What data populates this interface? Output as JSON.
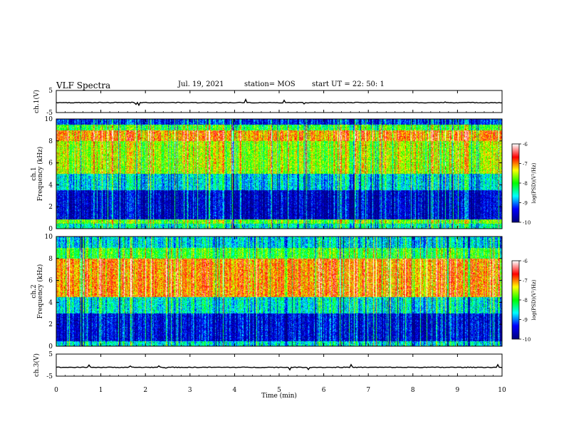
{
  "header": {
    "title": "VLF Spectra",
    "date": "Jul. 19, 2021",
    "station": "station= MOS",
    "start_ut": "start UT =  22: 50: 1"
  },
  "chart_data": [
    {
      "panel": "ch1-waveform",
      "type": "line",
      "ylabel": "ch.1(V)",
      "ylim": [
        -5,
        5
      ],
      "y_ticks": [
        "5",
        "-5"
      ],
      "xlim": [
        0,
        10
      ],
      "baseline": -0.5
    },
    {
      "panel": "ch1-spectrogram",
      "type": "heatmap",
      "ylabel": "ch.1\nFrequency (kHz)",
      "ylim": [
        0,
        10
      ],
      "y_ticks": [
        "0",
        "2",
        "4",
        "6",
        "8",
        "10"
      ],
      "xlim": [
        0,
        10
      ],
      "colorbar": {
        "label": "log(PSD)(V²/Hz)",
        "range": [
          -10,
          -6
        ],
        "ticks": [
          "-6",
          "-7",
          "-8",
          "-9",
          "-10"
        ]
      },
      "bands": [
        {
          "freq_khz": [
            0,
            0.4
          ],
          "level": -8.5
        },
        {
          "freq_khz": [
            0.4,
            0.8
          ],
          "level": -7.8
        },
        {
          "freq_khz": [
            0.8,
            3.5
          ],
          "level": -9.6
        },
        {
          "freq_khz": [
            3.5,
            5.0
          ],
          "level": -8.7
        },
        {
          "freq_khz": [
            5.0,
            8.0
          ],
          "level": -7.6
        },
        {
          "freq_khz": [
            8.0,
            9.0
          ],
          "level": -7.0
        },
        {
          "freq_khz": [
            9.0,
            9.5
          ],
          "level": -8.0
        },
        {
          "freq_khz": [
            9.5,
            10.0
          ],
          "level": -9.3
        }
      ]
    },
    {
      "panel": "ch2-spectrogram",
      "type": "heatmap",
      "ylabel": "ch.2\nFrequency (kHz)",
      "ylim": [
        0,
        10
      ],
      "y_ticks": [
        "0",
        "2",
        "4",
        "6",
        "8",
        "10"
      ],
      "xlim": [
        0,
        10
      ],
      "colorbar": {
        "label": "log(PSD)(V²/Hz)",
        "range": [
          -10,
          -6
        ],
        "ticks": [
          "-6",
          "-7",
          "-8",
          "-9",
          "-10"
        ]
      },
      "bands": [
        {
          "freq_khz": [
            0,
            0.4
          ],
          "level": -8.6
        },
        {
          "freq_khz": [
            0.4,
            3.0
          ],
          "level": -9.5
        },
        {
          "freq_khz": [
            3.0,
            4.5
          ],
          "level": -8.6
        },
        {
          "freq_khz": [
            4.5,
            8.0
          ],
          "level": -7.0
        },
        {
          "freq_khz": [
            8.0,
            9.0
          ],
          "level": -8.0
        },
        {
          "freq_khz": [
            9.0,
            10.0
          ],
          "level": -8.7
        }
      ]
    },
    {
      "panel": "ch3-waveform",
      "type": "line",
      "ylabel": "ch.3(V)",
      "ylim": [
        -5,
        5
      ],
      "y_ticks": [
        "5",
        "-5"
      ],
      "xlim": [
        0,
        10
      ],
      "baseline": -1.0
    }
  ],
  "x_axis": {
    "label": "Time (min)",
    "ticks": [
      "0",
      "1",
      "2",
      "3",
      "4",
      "5",
      "6",
      "7",
      "8",
      "9",
      "10"
    ],
    "range": [
      0,
      10
    ]
  },
  "colors": {
    "colormap": [
      "#000080",
      "#0000ff",
      "#00ffff",
      "#00ff00",
      "#ffff00",
      "#ff0000",
      "#ffffff"
    ]
  }
}
